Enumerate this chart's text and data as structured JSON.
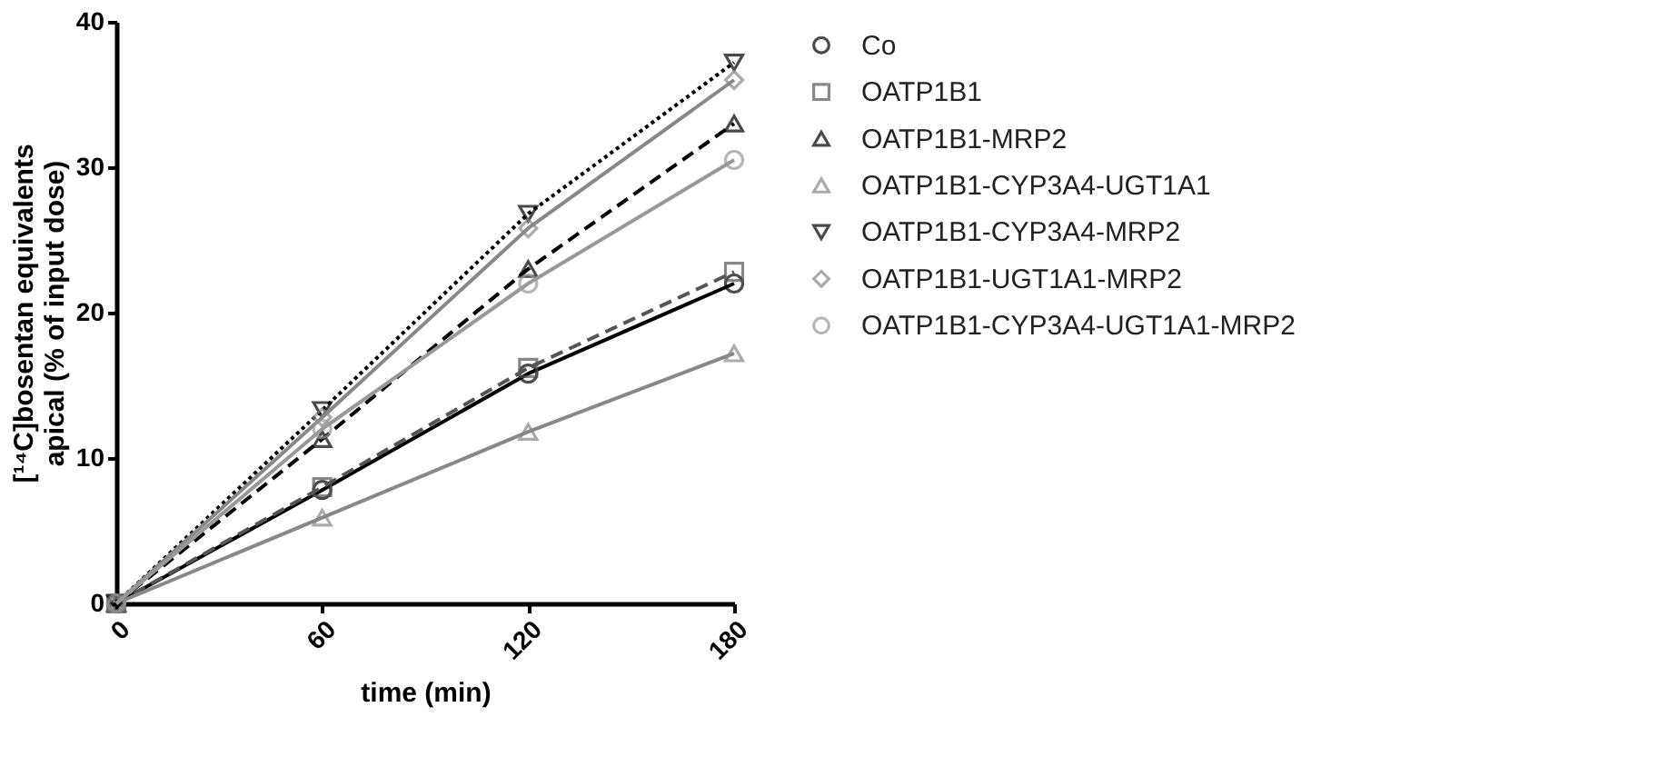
{
  "chart_data": {
    "type": "line",
    "xlabel": "time (min)",
    "ylabel": "[¹⁴C]bosentan equivalents apical (% of input dose)",
    "x": [
      0,
      60,
      120,
      180
    ],
    "xlim": [
      0,
      180
    ],
    "xticks": [
      0,
      60,
      120,
      180
    ],
    "ylim": [
      0,
      40
    ],
    "yticks": [
      0,
      10,
      20,
      30,
      40
    ],
    "grid": false,
    "legend": "right",
    "series": [
      {
        "name": "Co",
        "color": "#000000",
        "marker": "circle",
        "line_style": "solid",
        "values": [
          0,
          7.8,
          15.8,
          22.0
        ]
      },
      {
        "name": "OATP1B1",
        "color": "#555555",
        "marker": "square",
        "line_style": "dashed",
        "values": [
          0,
          8.0,
          16.2,
          22.8
        ]
      },
      {
        "name": "OATP1B1-MRP2",
        "color": "#000000",
        "marker": "triangle",
        "line_style": "dashed",
        "values": [
          0,
          11.3,
          23.0,
          33.0
        ]
      },
      {
        "name": "OATP1B1-CYP3A4-UGT1A1",
        "color": "#888888",
        "marker": "triangle",
        "line_style": "solid",
        "values": [
          0,
          5.9,
          11.8,
          17.2
        ]
      },
      {
        "name": "OATP1B1-CYP3A4-MRP2",
        "color": "#000000",
        "marker": "triangle-down",
        "line_style": "dotted",
        "values": [
          0,
          13.3,
          26.8,
          37.2
        ]
      },
      {
        "name": "OATP1B1-UGT1A1-MRP2",
        "color": "#888888",
        "marker": "diamond",
        "line_style": "solid",
        "values": [
          0,
          12.8,
          25.8,
          36.0
        ]
      },
      {
        "name": "OATP1B1-CYP3A4-UGT1A1-MRP2",
        "color": "#999999",
        "marker": "circle",
        "line_style": "solid",
        "values": [
          0,
          12.0,
          22.0,
          30.5
        ]
      }
    ]
  }
}
